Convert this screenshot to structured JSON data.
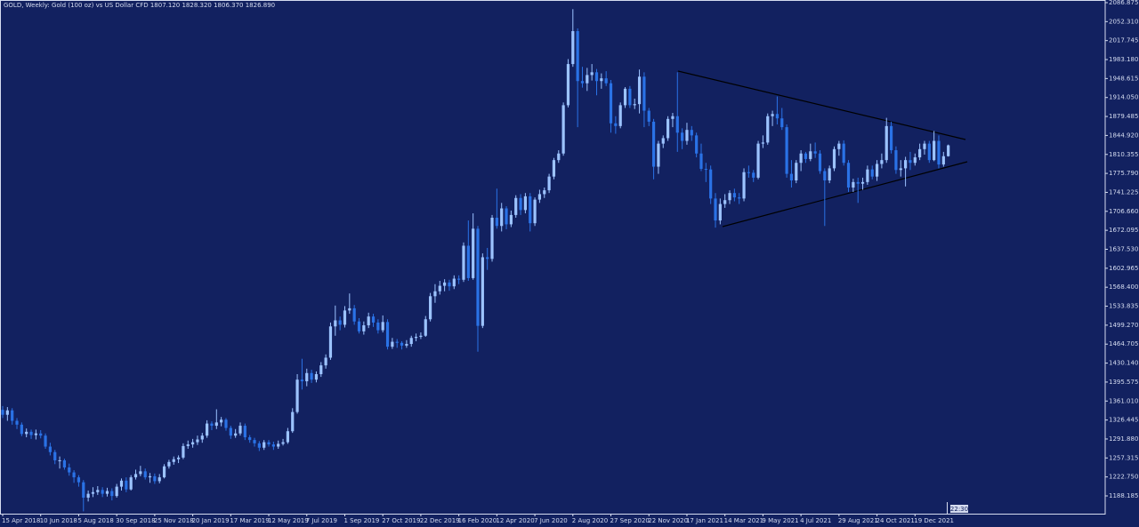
{
  "chart_data": {
    "type": "candlestick",
    "title": "GOLD, Weekly:  Gold (100 oz) vs US Dollar CFD  1807.120 1828.320 1806.370 1826.890",
    "countdown": "22:30",
    "up_color": "#9cc3ff",
    "down_color": "#2a72e6",
    "ylim": [
      1155.8,
      2091.7
    ],
    "yticks": [
      2086.875,
      {
        "value": 2052.31,
        "label": "2052.310"
      },
      2017.745,
      {
        "value": 1983.18,
        "label": "1983.180"
      },
      1948.615,
      {
        "value": 1914.05,
        "label": "1914.050"
      },
      1879.485,
      {
        "value": 1844.92,
        "label": "1844.920"
      },
      1810.355,
      {
        "value": 1775.79,
        "label": "1775.790"
      },
      1741.225,
      {
        "value": 1706.66,
        "label": "1706.660"
      },
      1672.095,
      {
        "value": 1637.53,
        "label": "1637.530"
      },
      1602.965,
      {
        "value": 1568.4,
        "label": "1568.400"
      },
      1533.835,
      {
        "value": 1499.27,
        "label": "1499.270"
      },
      1464.705,
      {
        "value": 1430.14,
        "label": "1430.140"
      },
      1395.575,
      {
        "value": 1361.01,
        "label": "1361.010"
      },
      1326.445,
      {
        "value": 1291.88,
        "label": "1291.880"
      },
      1257.315,
      {
        "value": 1222.75,
        "label": "1222.750"
      },
      1188.185
    ],
    "categories": [
      "15 Apr 2018",
      null,
      null,
      null,
      null,
      null,
      null,
      null,
      "10 Jun 2018",
      null,
      null,
      null,
      null,
      null,
      null,
      null,
      "5 Aug 2018",
      null,
      null,
      null,
      null,
      null,
      null,
      null,
      "30 Sep 2018",
      null,
      null,
      null,
      null,
      null,
      null,
      null,
      "25 Nov 2018",
      null,
      null,
      null,
      null,
      null,
      null,
      null,
      "20 Jan 2019",
      null,
      null,
      null,
      null,
      null,
      null,
      null,
      "17 Mar 2019",
      null,
      null,
      null,
      null,
      null,
      null,
      null,
      "12 May 2019",
      null,
      null,
      null,
      null,
      null,
      null,
      null,
      "7 Jul 2019",
      null,
      null,
      null,
      null,
      null,
      null,
      null,
      "1 Sep 2019",
      null,
      null,
      null,
      null,
      null,
      null,
      null,
      "27 Oct 2019",
      null,
      null,
      null,
      null,
      null,
      null,
      null,
      "22 Dec 2019",
      null,
      null,
      null,
      null,
      null,
      null,
      null,
      "16 Feb 2020",
      null,
      null,
      null,
      null,
      null,
      null,
      null,
      "12 Apr 2020",
      null,
      null,
      null,
      null,
      null,
      null,
      null,
      "7 Jun 2020",
      null,
      null,
      null,
      null,
      null,
      null,
      null,
      "2 Aug 2020",
      null,
      null,
      null,
      null,
      null,
      null,
      null,
      "27 Sep 2020",
      null,
      null,
      null,
      null,
      null,
      null,
      null,
      "22 Nov 2020",
      null,
      null,
      null,
      null,
      null,
      null,
      null,
      "17 Jan 2021",
      null,
      null,
      null,
      null,
      null,
      null,
      null,
      "14 Mar 2021",
      null,
      null,
      null,
      null,
      null,
      null,
      null,
      "9 May 2021",
      null,
      null,
      null,
      null,
      null,
      null,
      null,
      "4 Jul 2021",
      null,
      null,
      null,
      null,
      null,
      null,
      null,
      "29 Aug 2021",
      null,
      null,
      null,
      null,
      null,
      null,
      null,
      "24 Oct 2021",
      null,
      null,
      null,
      null,
      null,
      null,
      null,
      "19 Dec 2021",
      null,
      null,
      null,
      null,
      null,
      null,
      null
    ],
    "open": [
      1345,
      1336,
      1344,
      1325,
      1318,
      1301,
      1305,
      1299,
      1302,
      1298,
      1278,
      1268,
      1253,
      1253,
      1240,
      1231,
      1222,
      1213,
      1185,
      1192,
      1195,
      1199,
      1192,
      1197,
      1188,
      1205,
      1216,
      1200,
      1222,
      1228,
      1233,
      1222,
      1224,
      1215,
      1222,
      1242,
      1250,
      1255,
      1258,
      1279,
      1282,
      1286,
      1291,
      1298,
      1320,
      1316,
      1322,
      1327,
      1312,
      1298,
      1302,
      1316,
      1295,
      1290,
      1284,
      1276,
      1286,
      1282,
      1278,
      1283,
      1286,
      1306,
      1341,
      1400,
      1397,
      1412,
      1400,
      1410,
      1426,
      1440,
      1497,
      1508,
      1500,
      1526,
      1530,
      1506,
      1488,
      1499,
      1515,
      1504,
      1490,
      1505,
      1460,
      1469,
      1467,
      1462,
      1465,
      1476,
      1478,
      1480,
      1510,
      1552,
      1561,
      1571,
      1577,
      1570,
      1584,
      1582,
      1644,
      1585,
      1675,
      1498,
      1623,
      1620,
      1695,
      1680,
      1712,
      1683,
      1700,
      1731,
      1709,
      1734,
      1685,
      1728,
      1738,
      1745,
      1770,
      1800,
      1812,
      1900,
      1975,
      2035,
      1944,
      1940,
      1955,
      1960,
      1944,
      1949,
      1940,
      1867,
      1862,
      1900,
      1930,
      1900,
      1902,
      1952,
      1890,
      1870,
      1788,
      1830,
      1840,
      1875,
      1880,
      1850,
      1835,
      1855,
      1845,
      1812,
      1784,
      1783,
      1730,
      1690,
      1720,
      1727,
      1740,
      1732,
      1730,
      1778,
      1777,
      1768,
      1830,
      1832,
      1880,
      1884,
      1876,
      1860,
      1775,
      1763,
      1795,
      1812,
      1802,
      1816,
      1812,
      1780,
      1763,
      1785,
      1820,
      1830,
      1795,
      1750,
      1760,
      1757,
      1760,
      1783,
      1770,
      1793,
      1800,
      1862,
      1818,
      1782,
      1785,
      1800,
      1795,
      1805,
      1820,
      1830,
      1800,
      1835,
      1792,
      1807.12
    ],
    "high": [
      1352,
      1350,
      1348,
      1330,
      1322,
      1311,
      1309,
      1309,
      1308,
      1302,
      1285,
      1272,
      1260,
      1256,
      1247,
      1235,
      1226,
      1217,
      1198,
      1204,
      1206,
      1204,
      1203,
      1202,
      1210,
      1220,
      1222,
      1226,
      1236,
      1243,
      1238,
      1230,
      1229,
      1228,
      1246,
      1254,
      1260,
      1262,
      1284,
      1289,
      1292,
      1298,
      1303,
      1326,
      1324,
      1346,
      1332,
      1330,
      1316,
      1310,
      1322,
      1320,
      1299,
      1294,
      1288,
      1290,
      1290,
      1287,
      1289,
      1292,
      1312,
      1348,
      1410,
      1438,
      1420,
      1418,
      1415,
      1432,
      1446,
      1504,
      1535,
      1515,
      1534,
      1557,
      1536,
      1512,
      1506,
      1522,
      1520,
      1510,
      1517,
      1510,
      1476,
      1474,
      1470,
      1472,
      1480,
      1484,
      1486,
      1516,
      1558,
      1574,
      1580,
      1583,
      1582,
      1590,
      1590,
      1650,
      1690,
      1703,
      1680,
      1630,
      1640,
      1700,
      1748,
      1722,
      1716,
      1708,
      1736,
      1738,
      1740,
      1740,
      1732,
      1746,
      1750,
      1775,
      1804,
      1818,
      1905,
      1984,
      2075,
      2040,
      1970,
      1968,
      1975,
      1966,
      1958,
      1962,
      1946,
      1880,
      1905,
      1933,
      1935,
      1912,
      1965,
      1960,
      1895,
      1875,
      1835,
      1845,
      1880,
      1886,
      1960,
      1858,
      1868,
      1862,
      1850,
      1830,
      1795,
      1790,
      1740,
      1730,
      1738,
      1745,
      1748,
      1740,
      1785,
      1790,
      1782,
      1835,
      1845,
      1885,
      1890,
      1916,
      1895,
      1865,
      1800,
      1800,
      1818,
      1815,
      1830,
      1832,
      1818,
      1785,
      1790,
      1825,
      1835,
      1836,
      1800,
      1766,
      1768,
      1768,
      1790,
      1790,
      1800,
      1812,
      1877,
      1870,
      1825,
      1800,
      1806,
      1815,
      1812,
      1830,
      1835,
      1835,
      1853,
      1845,
      1815,
      1828.32
    ],
    "low": [
      1330,
      1325,
      1318,
      1310,
      1297,
      1295,
      1292,
      1291,
      1293,
      1274,
      1262,
      1246,
      1238,
      1236,
      1225,
      1212,
      1205,
      1160,
      1178,
      1186,
      1190,
      1186,
      1187,
      1180,
      1185,
      1198,
      1195,
      1198,
      1218,
      1224,
      1218,
      1212,
      1210,
      1211,
      1220,
      1238,
      1245,
      1248,
      1255,
      1274,
      1276,
      1281,
      1285,
      1294,
      1308,
      1310,
      1315,
      1307,
      1292,
      1294,
      1298,
      1290,
      1285,
      1278,
      1270,
      1272,
      1278,
      1272,
      1274,
      1280,
      1283,
      1303,
      1338,
      1382,
      1388,
      1394,
      1395,
      1405,
      1420,
      1436,
      1480,
      1490,
      1495,
      1520,
      1500,
      1484,
      1482,
      1494,
      1496,
      1484,
      1486,
      1455,
      1456,
      1458,
      1455,
      1458,
      1460,
      1470,
      1474,
      1478,
      1506,
      1540,
      1555,
      1561,
      1562,
      1565,
      1574,
      1578,
      1580,
      1582,
      1451,
      1494,
      1600,
      1615,
      1675,
      1670,
      1674,
      1678,
      1695,
      1700,
      1703,
      1670,
      1680,
      1722,
      1731,
      1740,
      1765,
      1795,
      1808,
      1896,
      1970,
      1860,
      1932,
      1926,
      1945,
      1918,
      1930,
      1935,
      1850,
      1848,
      1858,
      1895,
      1895,
      1893,
      1885,
      1860,
      1862,
      1765,
      1775,
      1822,
      1835,
      1860,
      1815,
      1820,
      1828,
      1835,
      1805,
      1780,
      1760,
      1720,
      1677,
      1683,
      1713,
      1720,
      1725,
      1720,
      1725,
      1768,
      1760,
      1765,
      1822,
      1828,
      1862,
      1865,
      1855,
      1768,
      1750,
      1758,
      1780,
      1795,
      1798,
      1804,
      1775,
      1680,
      1758,
      1780,
      1808,
      1790,
      1742,
      1742,
      1722,
      1746,
      1755,
      1765,
      1762,
      1785,
      1795,
      1812,
      1775,
      1770,
      1752,
      1782,
      1790,
      1800,
      1810,
      1795,
      1798,
      1785,
      1788,
      1806.37
    ],
    "close": [
      1336,
      1344,
      1325,
      1318,
      1301,
      1305,
      1299,
      1302,
      1298,
      1278,
      1268,
      1253,
      1253,
      1240,
      1231,
      1222,
      1213,
      1185,
      1192,
      1195,
      1199,
      1192,
      1197,
      1188,
      1205,
      1216,
      1200,
      1222,
      1228,
      1233,
      1222,
      1224,
      1215,
      1222,
      1242,
      1250,
      1255,
      1258,
      1279,
      1282,
      1286,
      1291,
      1298,
      1320,
      1316,
      1322,
      1327,
      1312,
      1298,
      1302,
      1316,
      1295,
      1290,
      1284,
      1276,
      1286,
      1282,
      1278,
      1283,
      1286,
      1306,
      1341,
      1400,
      1397,
      1412,
      1400,
      1410,
      1426,
      1440,
      1497,
      1508,
      1500,
      1526,
      1530,
      1506,
      1488,
      1499,
      1515,
      1504,
      1490,
      1505,
      1460,
      1469,
      1467,
      1462,
      1465,
      1476,
      1478,
      1480,
      1510,
      1552,
      1561,
      1571,
      1577,
      1570,
      1584,
      1582,
      1644,
      1585,
      1675,
      1498,
      1623,
      1620,
      1695,
      1680,
      1712,
      1683,
      1700,
      1731,
      1709,
      1734,
      1685,
      1728,
      1738,
      1745,
      1770,
      1800,
      1812,
      1900,
      1975,
      2035,
      1944,
      1940,
      1955,
      1960,
      1944,
      1949,
      1940,
      1867,
      1862,
      1900,
      1930,
      1900,
      1902,
      1952,
      1890,
      1870,
      1788,
      1830,
      1840,
      1875,
      1880,
      1850,
      1835,
      1855,
      1845,
      1812,
      1784,
      1783,
      1730,
      1690,
      1720,
      1727,
      1740,
      1732,
      1730,
      1778,
      1777,
      1768,
      1830,
      1832,
      1880,
      1884,
      1876,
      1860,
      1775,
      1763,
      1795,
      1812,
      1802,
      1816,
      1812,
      1780,
      1763,
      1785,
      1820,
      1830,
      1795,
      1750,
      1760,
      1757,
      1760,
      1783,
      1770,
      1793,
      1800,
      1862,
      1818,
      1782,
      1785,
      1800,
      1795,
      1805,
      1820,
      1830,
      1800,
      1835,
      1792,
      1807.12,
      1826.89
    ]
  }
}
